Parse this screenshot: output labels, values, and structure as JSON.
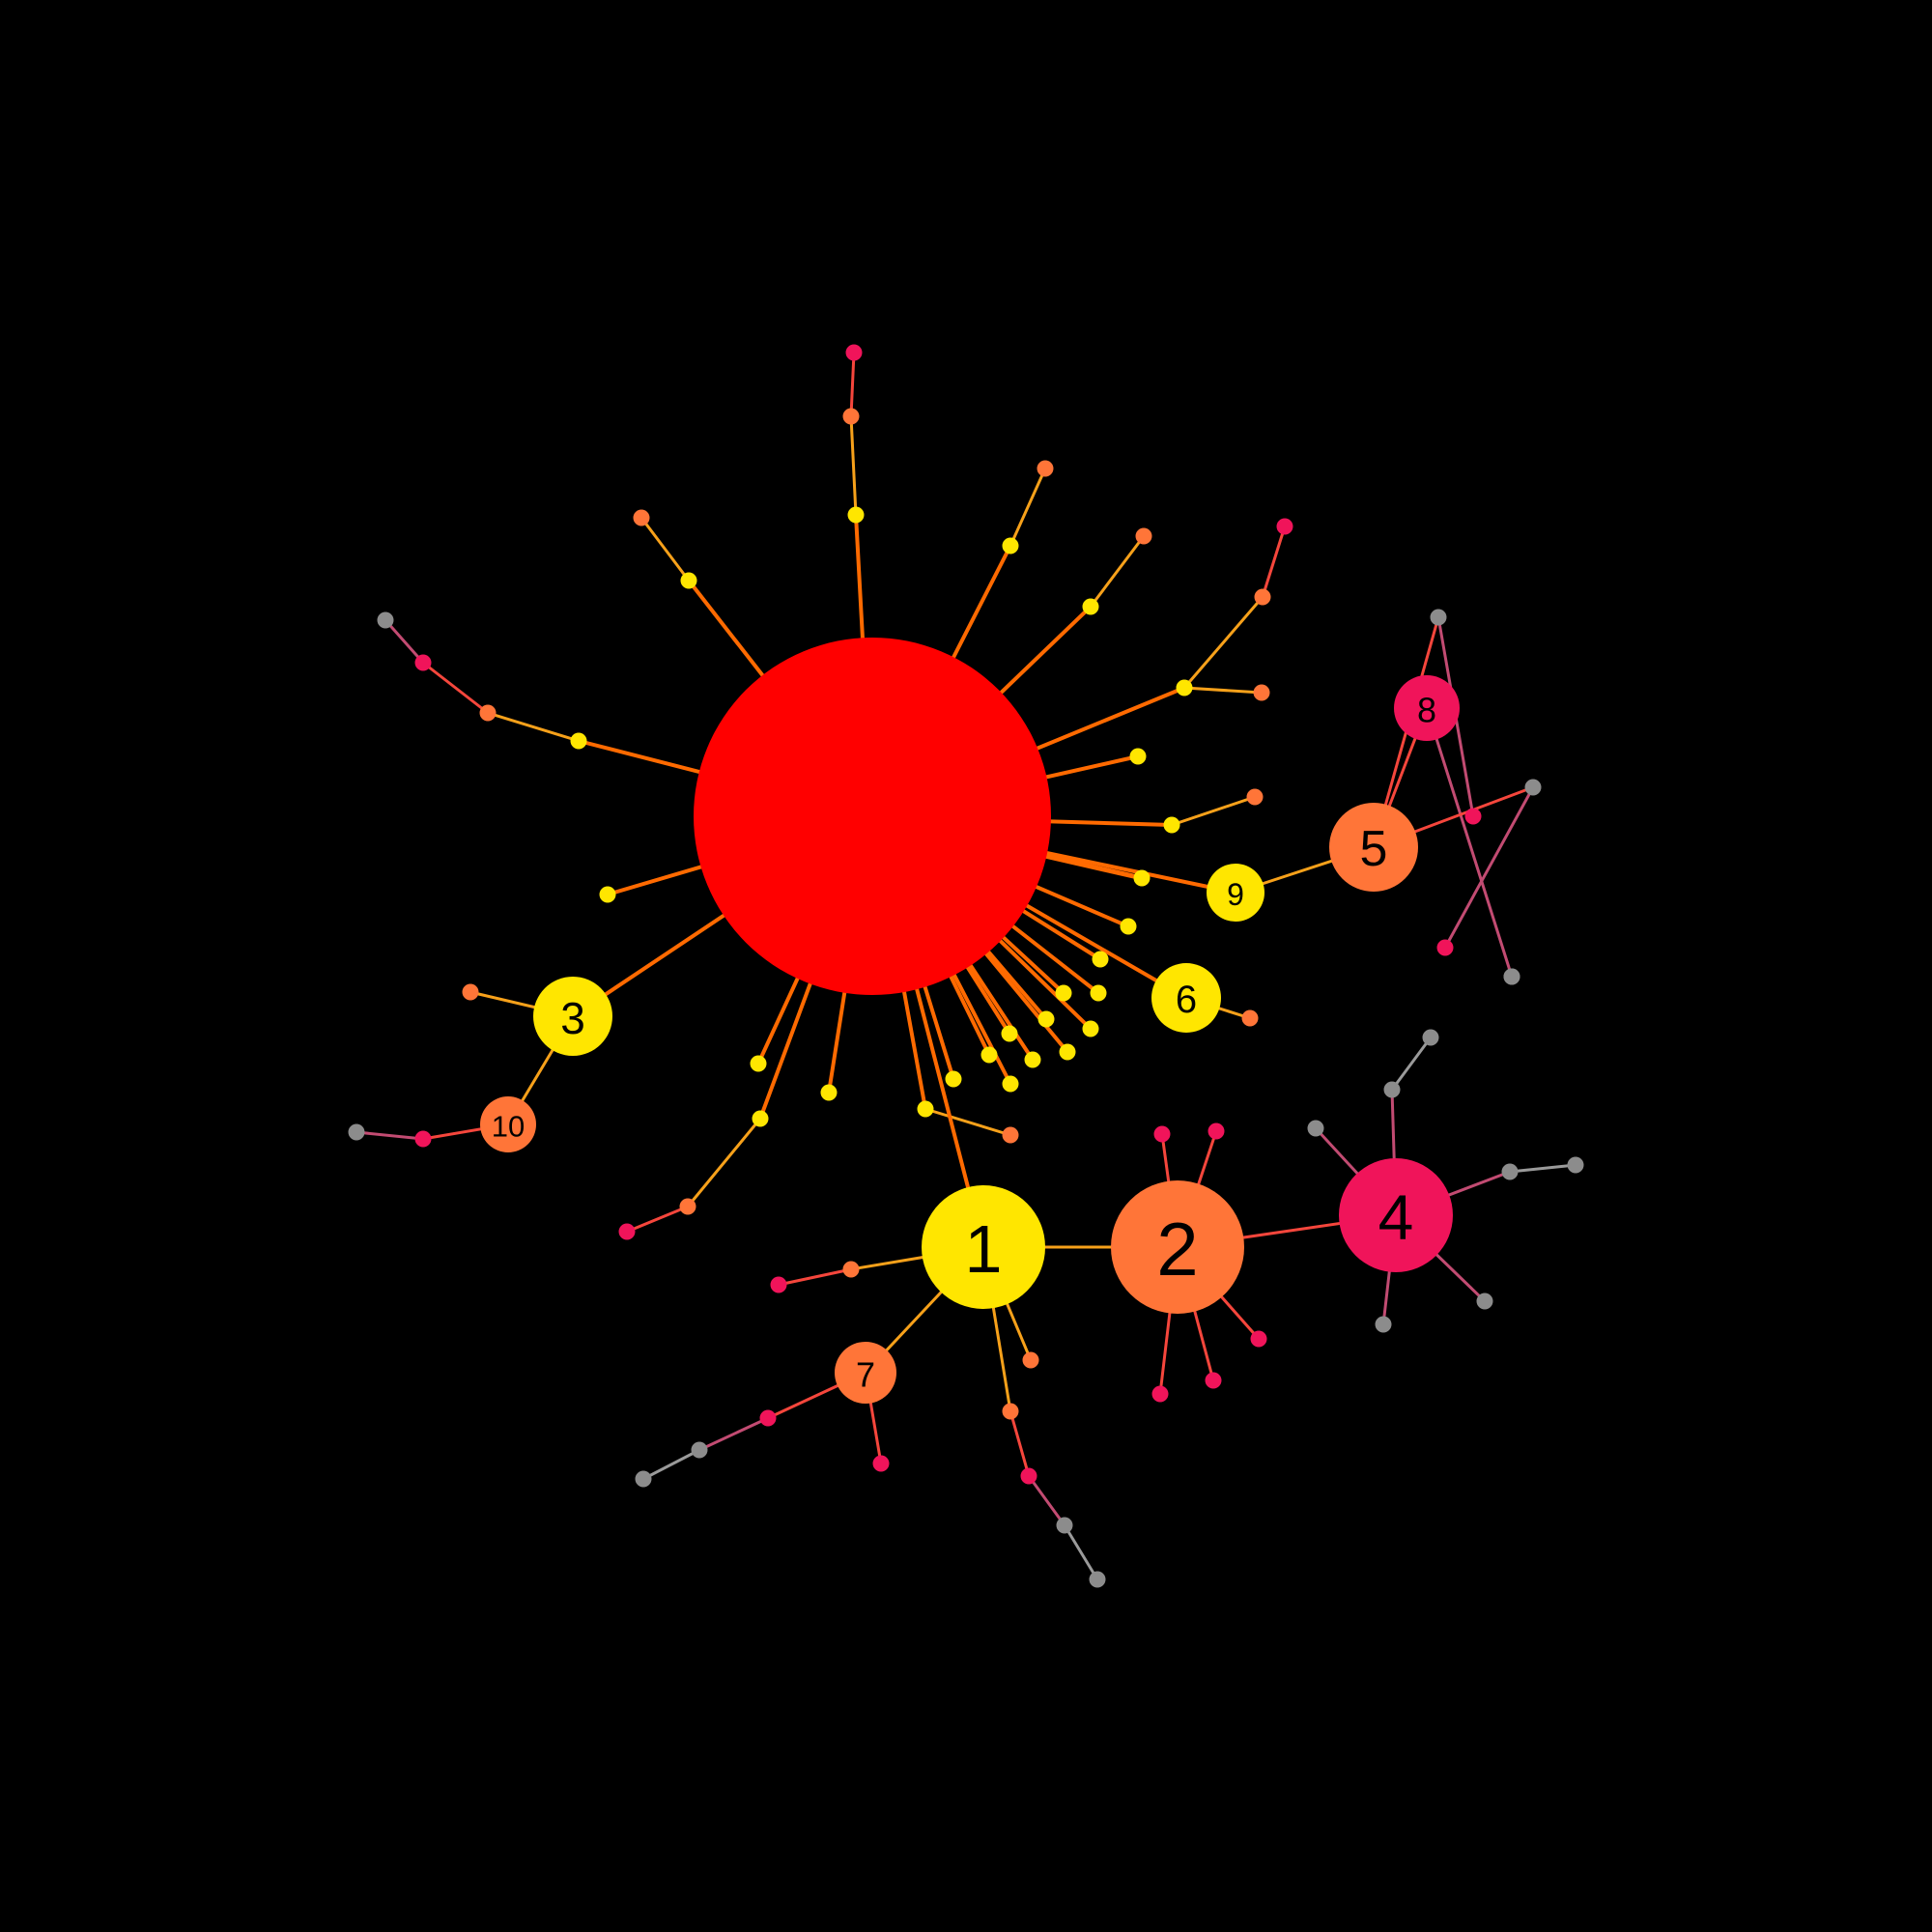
{
  "colors": {
    "background": "#000000",
    "hub": "#ff0000",
    "yellow": "#ffe600",
    "orange": "#ff7538",
    "pink": "#f0145a",
    "gray": "#8c8c8c",
    "edge_hub": "#ff6a00",
    "edge_yellow_orange": "#f7a11a",
    "edge_orange_pink": "#f5463c",
    "edge_pink_gray": "#c24b72",
    "edge_gray": "#9a9a9a"
  },
  "nodes": {
    "hub": {
      "color": "hub"
    },
    "n1": {
      "label": "1",
      "color": "yellow"
    },
    "n2": {
      "label": "2",
      "color": "orange"
    },
    "n3": {
      "label": "3",
      "color": "yellow"
    },
    "n4": {
      "label": "4",
      "color": "pink"
    },
    "n5": {
      "label": "5",
      "color": "orange"
    },
    "n6": {
      "label": "6",
      "color": "yellow"
    },
    "n7": {
      "label": "7",
      "color": "orange"
    },
    "n8": {
      "label": "8",
      "color": "pink"
    },
    "n9": {
      "label": "9",
      "color": "yellow"
    },
    "n10": {
      "label": "10",
      "color": "orange"
    }
  }
}
